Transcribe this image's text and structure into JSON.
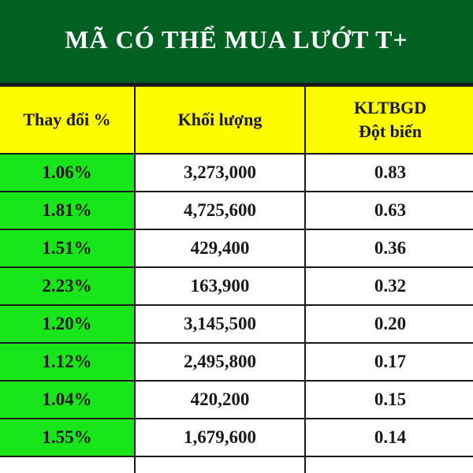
{
  "title": "MÃ CÓ THỂ MUA LƯỚT T+",
  "colors": {
    "title_background": "#006122",
    "header_background": "#fffc00",
    "change_column_background": "#19e619"
  },
  "headers": {
    "change": "Thay đổi %",
    "volume": "Khối lượng",
    "kltbgd_line1": "KLTBGD",
    "kltbgd_line2": "Đột biến"
  },
  "rows": [
    {
      "change": "1.06%",
      "volume": "3,273,000",
      "kltbgd": "0.83"
    },
    {
      "change": "1.81%",
      "volume": "4,725,600",
      "kltbgd": "0.63"
    },
    {
      "change": "1.51%",
      "volume": "429,400",
      "kltbgd": "0.36"
    },
    {
      "change": "2.23%",
      "volume": "163,900",
      "kltbgd": "0.32"
    },
    {
      "change": "1.20%",
      "volume": "3,145,500",
      "kltbgd": "0.20"
    },
    {
      "change": "1.12%",
      "volume": "2,495,800",
      "kltbgd": "0.17"
    },
    {
      "change": "1.04%",
      "volume": "420,200",
      "kltbgd": "0.15"
    },
    {
      "change": "1.55%",
      "volume": "1,679,600",
      "kltbgd": "0.14"
    },
    {
      "change": "",
      "volume": "",
      "kltbgd": ""
    }
  ]
}
